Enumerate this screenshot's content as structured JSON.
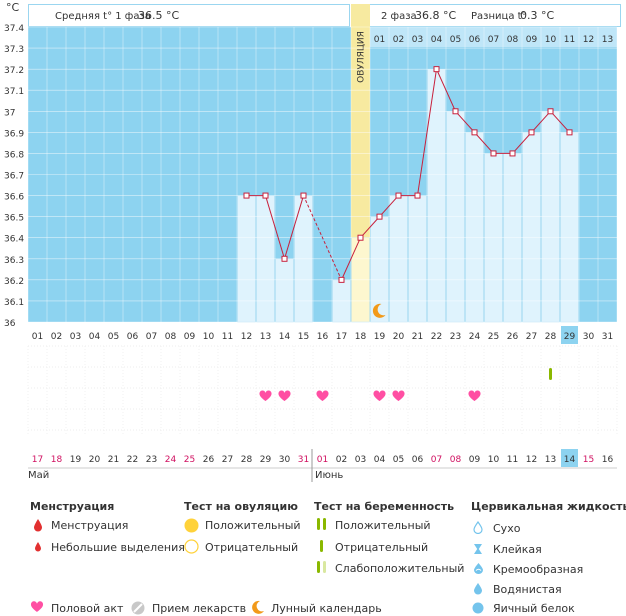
{
  "header": {
    "unit": "°C",
    "phase1_label": "Средняя t° 1 фаза",
    "phase1_value": "36.5 °C",
    "phase2_label": "2 фаза",
    "phase2_value": "36.8 °C",
    "diff_label": "Разница t°",
    "diff_value": "0.3 °C"
  },
  "chart_data": {
    "type": "line",
    "title": "",
    "ylabel": "°C",
    "ylim": [
      36.0,
      37.4
    ],
    "yticks": [
      "37.4",
      "37.3",
      "37.2",
      "37.1",
      "37",
      "36.9",
      "36.8",
      "36.7",
      "36.6",
      "36.5",
      "36.4",
      "36.3",
      "36.2",
      "36.1",
      "36"
    ],
    "cycle_days": [
      "01",
      "02",
      "03",
      "04",
      "05",
      "06",
      "07",
      "08",
      "09",
      "10",
      "11",
      "12",
      "13",
      "14",
      "15",
      "16",
      "17",
      "18",
      "19",
      "20",
      "21",
      "22",
      "23",
      "24",
      "25",
      "26",
      "27",
      "28",
      "29",
      "30",
      "31"
    ],
    "day_of_month": [
      "17",
      "18",
      "19",
      "20",
      "21",
      "22",
      "23",
      "24",
      "25",
      "26",
      "27",
      "28",
      "29",
      "30",
      "31",
      "01",
      "02",
      "03",
      "04",
      "05",
      "06",
      "07",
      "08",
      "09",
      "10",
      "11",
      "12",
      "13",
      "14",
      "15",
      "16"
    ],
    "date_colors": [
      "#d01060",
      "#d01060",
      "#333",
      "#333",
      "#333",
      "#333",
      "#333",
      "#d01060",
      "#d01060",
      "#333",
      "#333",
      "#333",
      "#333",
      "#333",
      "#d01060",
      "#d01060",
      "#333",
      "#333",
      "#333",
      "#333",
      "#333",
      "#d01060",
      "#d01060",
      "#333",
      "#333",
      "#333",
      "#333",
      "#333",
      "#333",
      "#d01060",
      "#333"
    ],
    "top_days": [
      "01",
      "02",
      "03",
      "04",
      "05",
      "06",
      "07",
      "08",
      "09",
      "10",
      "11",
      "12",
      "13"
    ],
    "series": [
      {
        "name": "temperature",
        "values": [
          null,
          null,
          null,
          null,
          null,
          null,
          null,
          null,
          null,
          null,
          null,
          36.6,
          36.6,
          36.3,
          36.6,
          null,
          36.2,
          36.4,
          36.5,
          36.6,
          36.6,
          37.2,
          37.0,
          36.9,
          36.8,
          36.8,
          36.9,
          37.0,
          36.9,
          null,
          null
        ]
      }
    ],
    "ovulation_day": 18,
    "ovulation_label": "ОВУЛЯЦИЯ",
    "today_day": 29,
    "intercourse_days": [
      13,
      14,
      16,
      19,
      20,
      24
    ],
    "pregnancy_test_day": 28,
    "moon_day": 19,
    "month_labels": [
      {
        "day": 1,
        "label": "Май"
      },
      {
        "day": 16,
        "label": "Июнь"
      }
    ]
  },
  "legend": {
    "menstruation": {
      "title": "Менструация",
      "items": [
        "Менструация",
        "Небольшие выделения"
      ]
    },
    "ovulation_test": {
      "title": "Тест на овуляцию",
      "items": [
        "Положительный",
        "Отрицательный"
      ]
    },
    "pregnancy_test": {
      "title": "Тест на беременность",
      "items": [
        "Положительный",
        "Отрицательный",
        "Слабоположительный"
      ]
    },
    "cervical": {
      "title": "Цервикальная жидкость",
      "items": [
        "Сухо",
        "Клейкая",
        "Кремообразная",
        "Водянистая",
        "Яичный белок"
      ]
    },
    "bottom": [
      "Половой акт",
      "Прием лекарств",
      "Лунный календарь"
    ]
  },
  "colors": {
    "plot_bg": "#8dd3f0",
    "bar": "#dff3fd",
    "bar_edge": "#9bd6f0",
    "line": "#c8203c",
    "ovulation_band": "#f7eaa0",
    "heart": "#ff4fa3",
    "sun": "#ffd23a",
    "moon": "#f29a1a",
    "test_positive": "#8ab800",
    "test_weak": "#d9e8a0",
    "drop_red": "#e23030",
    "drop_blue": "#74c4ec"
  }
}
